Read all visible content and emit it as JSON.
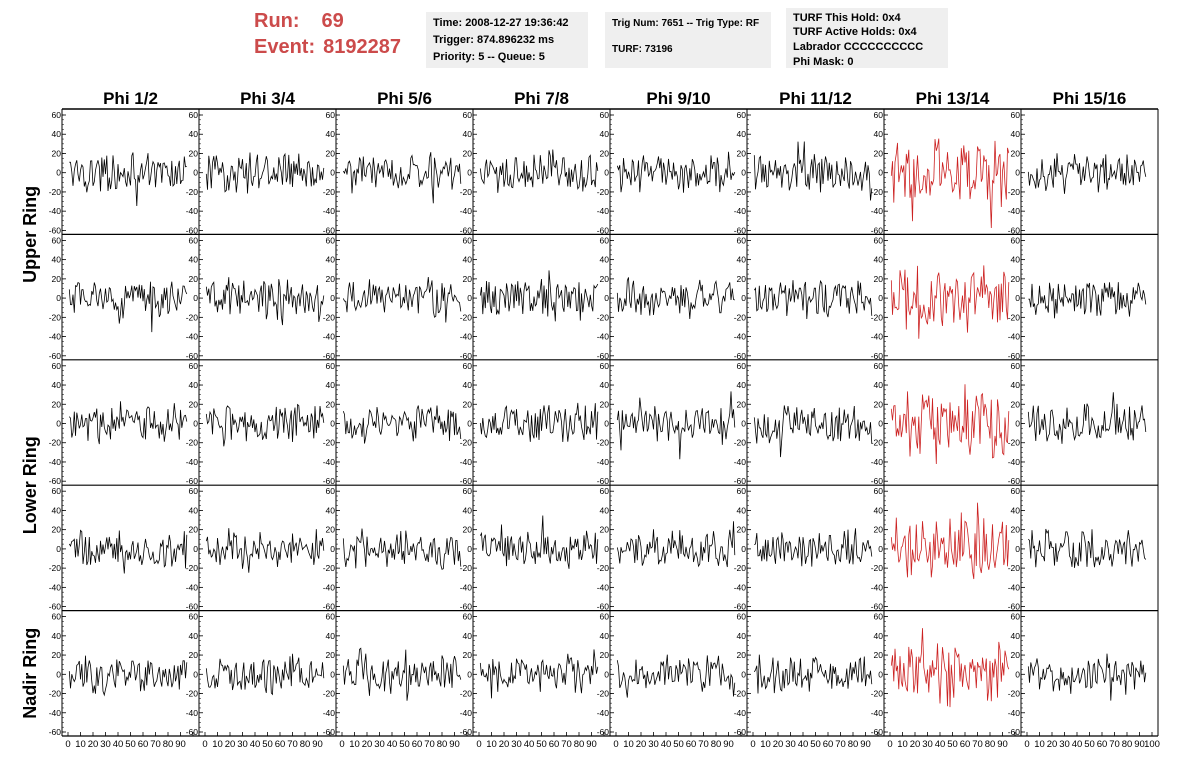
{
  "run": {
    "label": "Run:",
    "value": "69"
  },
  "event": {
    "label": "Event:",
    "value": "8192287"
  },
  "info": {
    "time": "Time: 2008-12-27 19:36:42",
    "trigger": "Trigger: 874.896232 ms",
    "priority": "Priority: 5 -- Queue: 5",
    "trig_num": "Trig Num: 7651 -- Trig Type: RF",
    "turf": "TURF: 73196",
    "turf_this_hold": "TURF This Hold: 0x4",
    "turf_active_holds": "TURF Active Holds: 0x4",
    "labrador": "Labrador CCCCCCCCCC",
    "phi_mask": "Phi Mask: 0"
  },
  "colors": {
    "normal_trace": "#000000",
    "triggered_trace": "#cc2222",
    "info_bg": "#efefef",
    "run_text": "#cc4b4b"
  },
  "chart_data": {
    "type": "line",
    "columns": [
      "Phi 1/2",
      "Phi 3/4",
      "Phi 5/6",
      "Phi 7/8",
      "Phi 9/10",
      "Phi 11/12",
      "Phi 13/14",
      "Phi 15/16"
    ],
    "ring_labels": [
      "Upper Ring",
      "Lower Ring",
      "Nadir Ring"
    ],
    "rows": 5,
    "triggered_column": 6,
    "xlim": [
      0,
      100
    ],
    "ylim": [
      -60,
      60
    ],
    "x_ticks": [
      0,
      10,
      20,
      30,
      40,
      50,
      60,
      70,
      80,
      90,
      100
    ],
    "x_tick_labels": [
      "0",
      "10",
      "20",
      "30",
      "40",
      "50",
      "60",
      "70",
      "80",
      "90",
      "100"
    ],
    "y_ticks": [
      -60,
      -40,
      -20,
      0,
      20,
      40,
      60
    ],
    "y_tick_labels": [
      "-60",
      "-40",
      "-20",
      "0",
      "20",
      "40",
      "60"
    ],
    "trace_length": 95,
    "trace_amplitude_typical": 15,
    "trace_amplitude_triggered": 25,
    "grid": false
  }
}
